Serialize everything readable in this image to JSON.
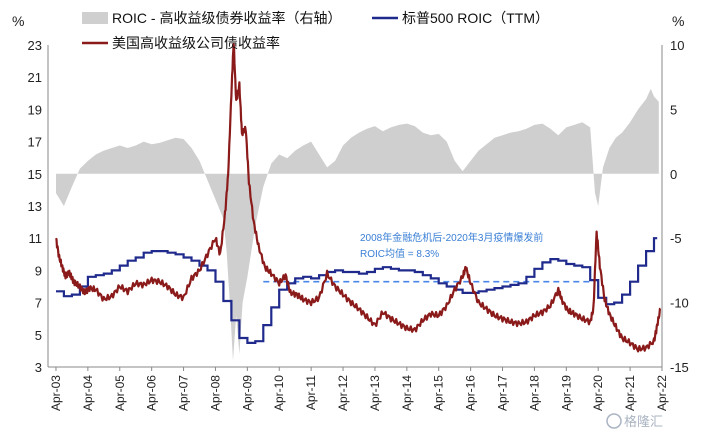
{
  "chart_data": {
    "type": "line",
    "units": {
      "left": "%",
      "right": "%"
    },
    "left_axis": {
      "ylim": [
        3,
        23
      ],
      "ticks": [
        3,
        5,
        7,
        9,
        11,
        13,
        15,
        17,
        19,
        21,
        23
      ]
    },
    "right_axis": {
      "ylim": [
        -15,
        10
      ],
      "ticks": [
        -15,
        -10,
        -5,
        0,
        5,
        10
      ]
    },
    "x_labels": [
      "Apr-03",
      "Apr-04",
      "Apr-05",
      "Apr-06",
      "Apr-07",
      "Apr-08",
      "Apr-09",
      "Apr-10",
      "Apr-11",
      "Apr-12",
      "Apr-13",
      "Apr-14",
      "Apr-15",
      "Apr-16",
      "Apr-17",
      "Apr-18",
      "Apr-19",
      "Apr-20",
      "Apr-21",
      "Apr-22"
    ],
    "series": [
      {
        "name": "ROIC - 高收益级债券收益率（右轴）",
        "kind": "area",
        "axis": "right",
        "color": "#cfcfcf",
        "points": [
          [
            2003.25,
            -1.5
          ],
          [
            2003.5,
            -2.5
          ],
          [
            2003.75,
            -1.0
          ],
          [
            2004.0,
            0.4
          ],
          [
            2004.25,
            1.0
          ],
          [
            2004.5,
            1.5
          ],
          [
            2004.75,
            1.8
          ],
          [
            2005.0,
            2.0
          ],
          [
            2005.25,
            2.2
          ],
          [
            2005.5,
            2.0
          ],
          [
            2005.75,
            2.2
          ],
          [
            2006.0,
            2.5
          ],
          [
            2006.25,
            2.3
          ],
          [
            2006.5,
            2.4
          ],
          [
            2006.75,
            2.6
          ],
          [
            2007.0,
            2.8
          ],
          [
            2007.25,
            2.7
          ],
          [
            2007.5,
            2.0
          ],
          [
            2007.75,
            1.0
          ],
          [
            2008.0,
            -0.5
          ],
          [
            2008.25,
            -2.0
          ],
          [
            2008.5,
            -3.5
          ],
          [
            2008.6,
            -6.0
          ],
          [
            2008.7,
            -10.0
          ],
          [
            2008.8,
            -14.5
          ],
          [
            2008.9,
            -11.0
          ],
          [
            2009.0,
            -14.0
          ],
          [
            2009.1,
            -10.0
          ],
          [
            2009.25,
            -8.0
          ],
          [
            2009.5,
            -4.0
          ],
          [
            2009.75,
            -1.0
          ],
          [
            2010.0,
            0.8
          ],
          [
            2010.25,
            1.5
          ],
          [
            2010.5,
            1.2
          ],
          [
            2010.75,
            1.8
          ],
          [
            2011.0,
            2.2
          ],
          [
            2011.25,
            2.5
          ],
          [
            2011.5,
            1.5
          ],
          [
            2011.75,
            0.5
          ],
          [
            2012.0,
            1.0
          ],
          [
            2012.25,
            2.2
          ],
          [
            2012.5,
            2.8
          ],
          [
            2012.75,
            3.2
          ],
          [
            2013.0,
            3.5
          ],
          [
            2013.25,
            3.7
          ],
          [
            2013.5,
            3.3
          ],
          [
            2013.75,
            3.6
          ],
          [
            2014.0,
            3.8
          ],
          [
            2014.25,
            3.9
          ],
          [
            2014.5,
            3.7
          ],
          [
            2014.75,
            3.2
          ],
          [
            2015.0,
            3.0
          ],
          [
            2015.25,
            3.1
          ],
          [
            2015.5,
            2.5
          ],
          [
            2015.75,
            1.0
          ],
          [
            2016.0,
            0.2
          ],
          [
            2016.25,
            1.0
          ],
          [
            2016.5,
            1.8
          ],
          [
            2016.75,
            2.3
          ],
          [
            2017.0,
            2.8
          ],
          [
            2017.25,
            3.0
          ],
          [
            2017.5,
            3.2
          ],
          [
            2017.75,
            3.3
          ],
          [
            2018.0,
            3.5
          ],
          [
            2018.25,
            3.8
          ],
          [
            2018.5,
            3.9
          ],
          [
            2018.75,
            3.5
          ],
          [
            2019.0,
            3.0
          ],
          [
            2019.25,
            3.6
          ],
          [
            2019.5,
            3.8
          ],
          [
            2019.75,
            4.0
          ],
          [
            2020.0,
            3.6
          ],
          [
            2020.15,
            -1.5
          ],
          [
            2020.25,
            -2.5
          ],
          [
            2020.4,
            0.5
          ],
          [
            2020.6,
            2.0
          ],
          [
            2020.8,
            2.8
          ],
          [
            2021.0,
            3.2
          ],
          [
            2021.25,
            4.0
          ],
          [
            2021.5,
            5.0
          ],
          [
            2021.75,
            5.8
          ],
          [
            2021.9,
            6.6
          ],
          [
            2022.0,
            6.0
          ],
          [
            2022.15,
            5.6
          ]
        ]
      },
      {
        "name": "标普500 ROIC（TTM）",
        "kind": "step",
        "axis": "left",
        "color": "#1f2a8c",
        "points": [
          [
            2003.25,
            7.7
          ],
          [
            2003.5,
            7.4
          ],
          [
            2003.75,
            7.5
          ],
          [
            2004.0,
            8.0
          ],
          [
            2004.25,
            8.6
          ],
          [
            2004.5,
            8.7
          ],
          [
            2004.75,
            8.8
          ],
          [
            2005.0,
            9.0
          ],
          [
            2005.25,
            9.3
          ],
          [
            2005.5,
            9.6
          ],
          [
            2005.75,
            9.8
          ],
          [
            2006.0,
            10.1
          ],
          [
            2006.25,
            10.2
          ],
          [
            2006.5,
            10.2
          ],
          [
            2006.75,
            10.1
          ],
          [
            2007.0,
            10.0
          ],
          [
            2007.25,
            9.8
          ],
          [
            2007.5,
            9.6
          ],
          [
            2007.75,
            9.3
          ],
          [
            2008.0,
            9.0
          ],
          [
            2008.25,
            8.3
          ],
          [
            2008.5,
            7.1
          ],
          [
            2008.75,
            5.9
          ],
          [
            2009.0,
            4.8
          ],
          [
            2009.25,
            4.5
          ],
          [
            2009.5,
            4.6
          ],
          [
            2009.75,
            5.6
          ],
          [
            2010.0,
            6.7
          ],
          [
            2010.25,
            7.8
          ],
          [
            2010.5,
            8.2
          ],
          [
            2010.75,
            8.5
          ],
          [
            2011.0,
            8.6
          ],
          [
            2011.25,
            8.5
          ],
          [
            2011.5,
            8.7
          ],
          [
            2011.75,
            8.9
          ],
          [
            2012.0,
            9.0
          ],
          [
            2012.25,
            8.9
          ],
          [
            2012.5,
            8.9
          ],
          [
            2012.75,
            8.8
          ],
          [
            2013.0,
            8.9
          ],
          [
            2013.25,
            9.1
          ],
          [
            2013.5,
            9.2
          ],
          [
            2013.75,
            9.1
          ],
          [
            2014.0,
            9.0
          ],
          [
            2014.25,
            9.0
          ],
          [
            2014.5,
            8.9
          ],
          [
            2014.75,
            8.7
          ],
          [
            2015.0,
            8.5
          ],
          [
            2015.25,
            8.2
          ],
          [
            2015.5,
            8.0
          ],
          [
            2015.75,
            7.8
          ],
          [
            2016.0,
            7.6
          ],
          [
            2016.25,
            7.6
          ],
          [
            2016.5,
            7.7
          ],
          [
            2016.75,
            7.8
          ],
          [
            2017.0,
            7.9
          ],
          [
            2017.25,
            8.0
          ],
          [
            2017.5,
            8.1
          ],
          [
            2017.75,
            8.2
          ],
          [
            2018.0,
            8.6
          ],
          [
            2018.25,
            9.1
          ],
          [
            2018.5,
            9.5
          ],
          [
            2018.75,
            9.7
          ],
          [
            2019.0,
            9.6
          ],
          [
            2019.25,
            9.4
          ],
          [
            2019.5,
            9.3
          ],
          [
            2019.75,
            9.2
          ],
          [
            2020.0,
            8.4
          ],
          [
            2020.25,
            7.3
          ],
          [
            2020.5,
            6.9
          ],
          [
            2020.75,
            7.0
          ],
          [
            2021.0,
            7.5
          ],
          [
            2021.25,
            8.3
          ],
          [
            2021.5,
            9.3
          ],
          [
            2021.75,
            10.2
          ],
          [
            2022.0,
            11.0
          ],
          [
            2022.1,
            11.0
          ]
        ]
      },
      {
        "name": "美国高收益级公司债收益率",
        "kind": "line",
        "axis": "left",
        "color": "#8b1a1a",
        "points": [
          [
            2003.25,
            11.0
          ],
          [
            2003.35,
            9.8
          ],
          [
            2003.45,
            9.2
          ],
          [
            2003.55,
            8.6
          ],
          [
            2003.65,
            8.9
          ],
          [
            2003.75,
            8.5
          ],
          [
            2003.85,
            8.2
          ],
          [
            2004.0,
            8.0
          ],
          [
            2004.15,
            7.6
          ],
          [
            2004.3,
            7.9
          ],
          [
            2004.5,
            7.8
          ],
          [
            2004.75,
            7.2
          ],
          [
            2005.0,
            7.4
          ],
          [
            2005.25,
            8.0
          ],
          [
            2005.5,
            7.7
          ],
          [
            2005.75,
            8.2
          ],
          [
            2006.0,
            8.1
          ],
          [
            2006.25,
            8.4
          ],
          [
            2006.5,
            8.3
          ],
          [
            2006.75,
            8.0
          ],
          [
            2007.0,
            7.5
          ],
          [
            2007.25,
            7.3
          ],
          [
            2007.5,
            8.5
          ],
          [
            2007.75,
            9.0
          ],
          [
            2008.0,
            10.0
          ],
          [
            2008.25,
            11.0
          ],
          [
            2008.4,
            10.0
          ],
          [
            2008.55,
            12.5
          ],
          [
            2008.65,
            15.0
          ],
          [
            2008.75,
            20.0
          ],
          [
            2008.82,
            23.2
          ],
          [
            2008.9,
            19.5
          ],
          [
            2009.0,
            20.5
          ],
          [
            2009.08,
            17.5
          ],
          [
            2009.2,
            17.8
          ],
          [
            2009.3,
            14.5
          ],
          [
            2009.45,
            12.0
          ],
          [
            2009.6,
            10.5
          ],
          [
            2009.8,
            9.2
          ],
          [
            2010.0,
            8.8
          ],
          [
            2010.25,
            8.2
          ],
          [
            2010.45,
            8.7
          ],
          [
            2010.6,
            7.6
          ],
          [
            2010.8,
            7.5
          ],
          [
            2011.0,
            7.2
          ],
          [
            2011.25,
            7.0
          ],
          [
            2011.5,
            7.3
          ],
          [
            2011.75,
            8.8
          ],
          [
            2012.0,
            8.0
          ],
          [
            2012.25,
            7.5
          ],
          [
            2012.5,
            7.0
          ],
          [
            2012.75,
            6.6
          ],
          [
            2013.0,
            6.1
          ],
          [
            2013.25,
            5.6
          ],
          [
            2013.5,
            6.4
          ],
          [
            2013.75,
            6.0
          ],
          [
            2014.0,
            5.7
          ],
          [
            2014.25,
            5.4
          ],
          [
            2014.5,
            5.3
          ],
          [
            2014.75,
            5.9
          ],
          [
            2015.0,
            6.3
          ],
          [
            2015.25,
            6.2
          ],
          [
            2015.5,
            6.8
          ],
          [
            2015.75,
            7.8
          ],
          [
            2016.0,
            8.6
          ],
          [
            2016.1,
            9.2
          ],
          [
            2016.25,
            8.2
          ],
          [
            2016.5,
            7.0
          ],
          [
            2016.75,
            6.6
          ],
          [
            2017.0,
            6.2
          ],
          [
            2017.25,
            6.0
          ],
          [
            2017.5,
            5.8
          ],
          [
            2017.75,
            5.7
          ],
          [
            2018.0,
            5.8
          ],
          [
            2018.25,
            6.2
          ],
          [
            2018.5,
            6.4
          ],
          [
            2018.75,
            6.8
          ],
          [
            2019.0,
            7.8
          ],
          [
            2019.1,
            7.2
          ],
          [
            2019.3,
            6.5
          ],
          [
            2019.5,
            6.3
          ],
          [
            2019.75,
            6.0
          ],
          [
            2020.0,
            5.8
          ],
          [
            2020.1,
            6.6
          ],
          [
            2020.2,
            11.4
          ],
          [
            2020.3,
            9.3
          ],
          [
            2020.45,
            7.2
          ],
          [
            2020.6,
            6.3
          ],
          [
            2020.8,
            5.5
          ],
          [
            2021.0,
            4.8
          ],
          [
            2021.25,
            4.5
          ],
          [
            2021.5,
            4.1
          ],
          [
            2021.75,
            4.2
          ],
          [
            2022.0,
            4.6
          ],
          [
            2022.1,
            5.6
          ],
          [
            2022.2,
            6.6
          ]
        ]
      }
    ],
    "reference_line": {
      "axis": "left",
      "value": 8.3,
      "x_range": [
        2009.75,
        2020.1
      ],
      "color": "#4a86e8",
      "style": "dashed"
    },
    "annotation": [
      "2008年金融危机后-2020年3月疫情爆发前",
      "ROIC均值 = 8.3%"
    ],
    "legend": [
      "ROIC - 高收益级债券收益率（右轴）",
      "标普500 ROIC（TTM）",
      "美国高收益级公司债收益率"
    ],
    "watermark": "格隆汇"
  },
  "icons": {
    "watermark_logo": "glh-logo-icon"
  }
}
